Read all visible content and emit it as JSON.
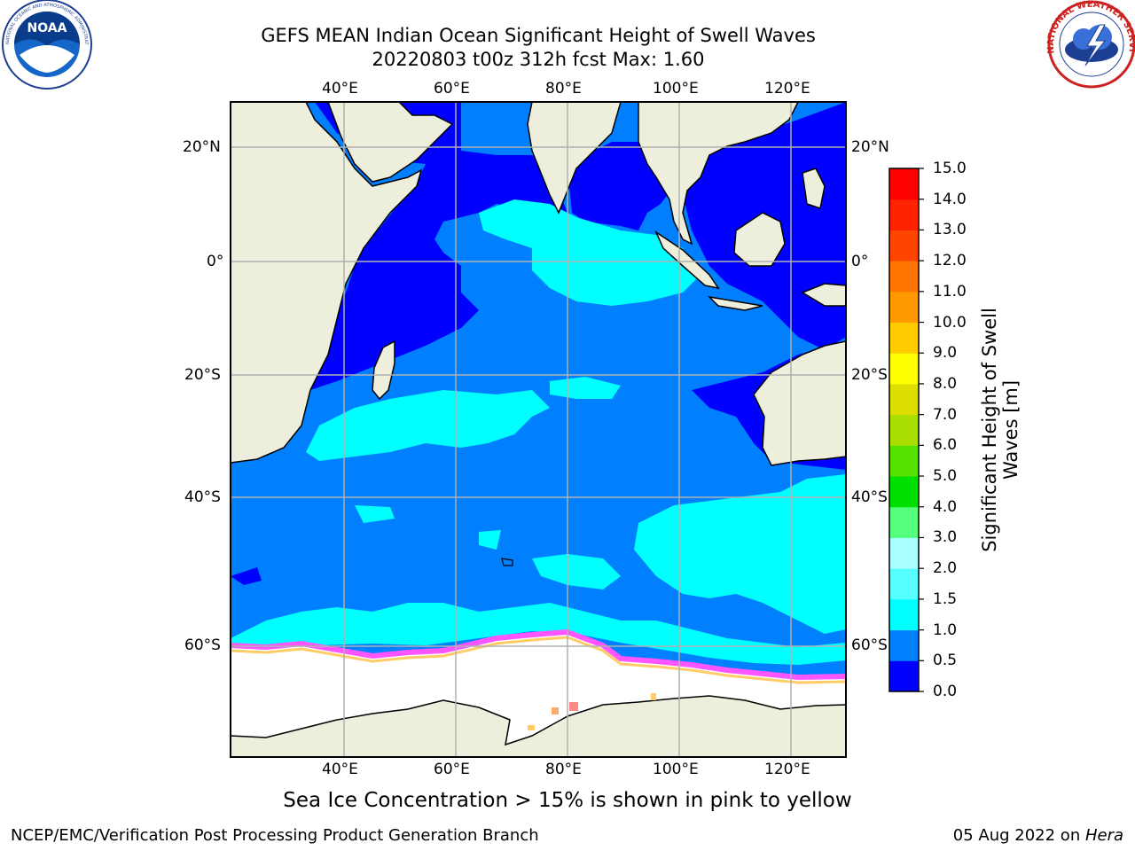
{
  "title": {
    "line1": "GEFS MEAN Indian Ocean Significant Height of Swell Waves",
    "line2": "20220803 t00z 312h fcst   Max: 1.60"
  },
  "logos": {
    "noaa": {
      "text": "NOAA",
      "ring_text": "NATIONAL OCEANIC AND ATMOSPHERIC ADMINISTRATION • U.S. DEPARTMENT OF COMMERCE"
    },
    "nws": {
      "ring_text": "NATIONAL WEATHER SERVICE"
    }
  },
  "map": {
    "lon_labels": [
      "40°E",
      "60°E",
      "80°E",
      "100°E",
      "120°E"
    ],
    "lat_labels": [
      "20°N",
      "0°",
      "20°S",
      "40°S",
      "60°S"
    ],
    "ocean_colors": {
      "lt_0_5": "#0000ff",
      "0_5_1_0": "#0080ff",
      "1_0_1_5": "#00ffff",
      "land": "#eeeedd",
      "sea_ice": [
        "#ff55ff",
        "#ff88cc",
        "#ffcc66"
      ]
    }
  },
  "colorbar": {
    "label_line1": "Significant Height of Swell",
    "label_line2": "Waves [m]",
    "ticks": [
      "0.0",
      "0.5",
      "1.0",
      "1.5",
      "2.0",
      "3.0",
      "4.0",
      "5.0",
      "6.0",
      "7.0",
      "8.0",
      "9.0",
      "10.0",
      "11.0",
      "12.0",
      "13.0",
      "14.0",
      "15.0"
    ],
    "colors": [
      "#0000ff",
      "#0080ff",
      "#00ffff",
      "#55ffff",
      "#aaffff",
      "#55ff80",
      "#00e000",
      "#55e000",
      "#aadd00",
      "#dddd00",
      "#ffff00",
      "#ffcc00",
      "#ff9900",
      "#ff7700",
      "#ff4400",
      "#ff2200",
      "#ff0000"
    ]
  },
  "footnote": "Sea Ice Concentration > 15% is shown in pink to yellow",
  "footer": {
    "left": "NCEP/EMC/Verification Post Processing Product Generation Branch",
    "date": "05 Aug 2022 on ",
    "host": "Hera"
  }
}
